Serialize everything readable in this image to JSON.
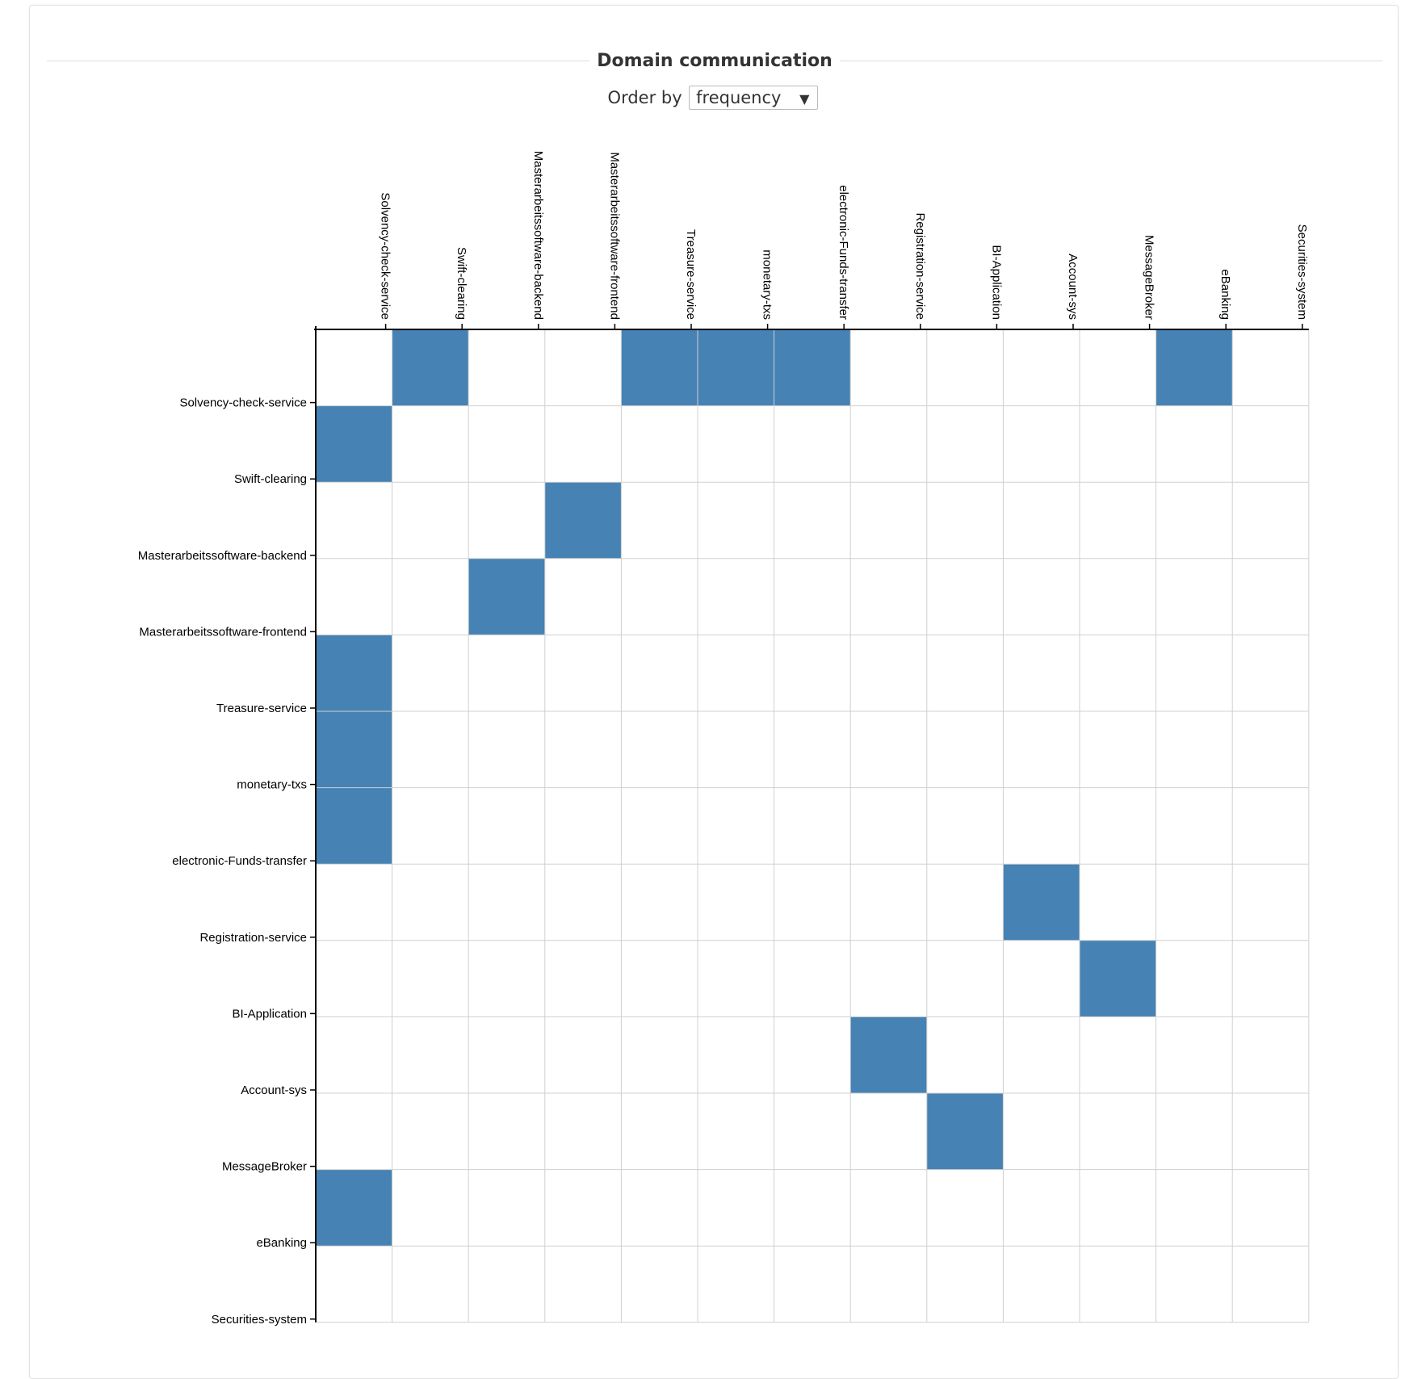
{
  "header": {
    "title": "Domain communication",
    "order_label": "Order by",
    "order_value": "frequency",
    "order_icon": "chevron-down-icon"
  },
  "colors": {
    "filled": "#4682b4",
    "empty": "#ffffff",
    "grid": "#d0d0d0",
    "axis": "#000000"
  },
  "chart_data": {
    "type": "heatmap",
    "title": "Domain communication",
    "order_by": "frequency",
    "rows": [
      "Solvency-check-service",
      "Swift-clearing",
      "Masterarbeitssoftware-backend",
      "Masterarbeitssoftware-frontend",
      "Treasure-service",
      "monetary-txs",
      "electronic-Funds-transfer",
      "Registration-service",
      "BI-Application",
      "Account-sys",
      "MessageBroker",
      "eBanking",
      "Securities-system"
    ],
    "columns": [
      "Solvency-check-service",
      "Swift-clearing",
      "Masterarbeitssoftware-backend",
      "Masterarbeitssoftware-frontend",
      "Treasure-service",
      "monetary-txs",
      "electronic-Funds-transfer",
      "Registration-service",
      "BI-Application",
      "Account-sys",
      "MessageBroker",
      "eBanking",
      "Securities-system"
    ],
    "values": [
      [
        0,
        1,
        0,
        0,
        1,
        1,
        1,
        0,
        0,
        0,
        0,
        1,
        0
      ],
      [
        1,
        0,
        0,
        0,
        0,
        0,
        0,
        0,
        0,
        0,
        0,
        0,
        0
      ],
      [
        0,
        0,
        0,
        1,
        0,
        0,
        0,
        0,
        0,
        0,
        0,
        0,
        0
      ],
      [
        0,
        0,
        1,
        0,
        0,
        0,
        0,
        0,
        0,
        0,
        0,
        0,
        0
      ],
      [
        1,
        0,
        0,
        0,
        0,
        0,
        0,
        0,
        0,
        0,
        0,
        0,
        0
      ],
      [
        1,
        0,
        0,
        0,
        0,
        0,
        0,
        0,
        0,
        0,
        0,
        0,
        0
      ],
      [
        1,
        0,
        0,
        0,
        0,
        0,
        0,
        0,
        0,
        0,
        0,
        0,
        0
      ],
      [
        0,
        0,
        0,
        0,
        0,
        0,
        0,
        0,
        0,
        1,
        0,
        0,
        0
      ],
      [
        0,
        0,
        0,
        0,
        0,
        0,
        0,
        0,
        0,
        0,
        1,
        0,
        0
      ],
      [
        0,
        0,
        0,
        0,
        0,
        0,
        0,
        1,
        0,
        0,
        0,
        0,
        0
      ],
      [
        0,
        0,
        0,
        0,
        0,
        0,
        0,
        0,
        1,
        0,
        0,
        0,
        0
      ],
      [
        1,
        0,
        0,
        0,
        0,
        0,
        0,
        0,
        0,
        0,
        0,
        0,
        0
      ],
      [
        0,
        0,
        0,
        0,
        0,
        0,
        0,
        0,
        0,
        0,
        0,
        0,
        0
      ]
    ]
  }
}
